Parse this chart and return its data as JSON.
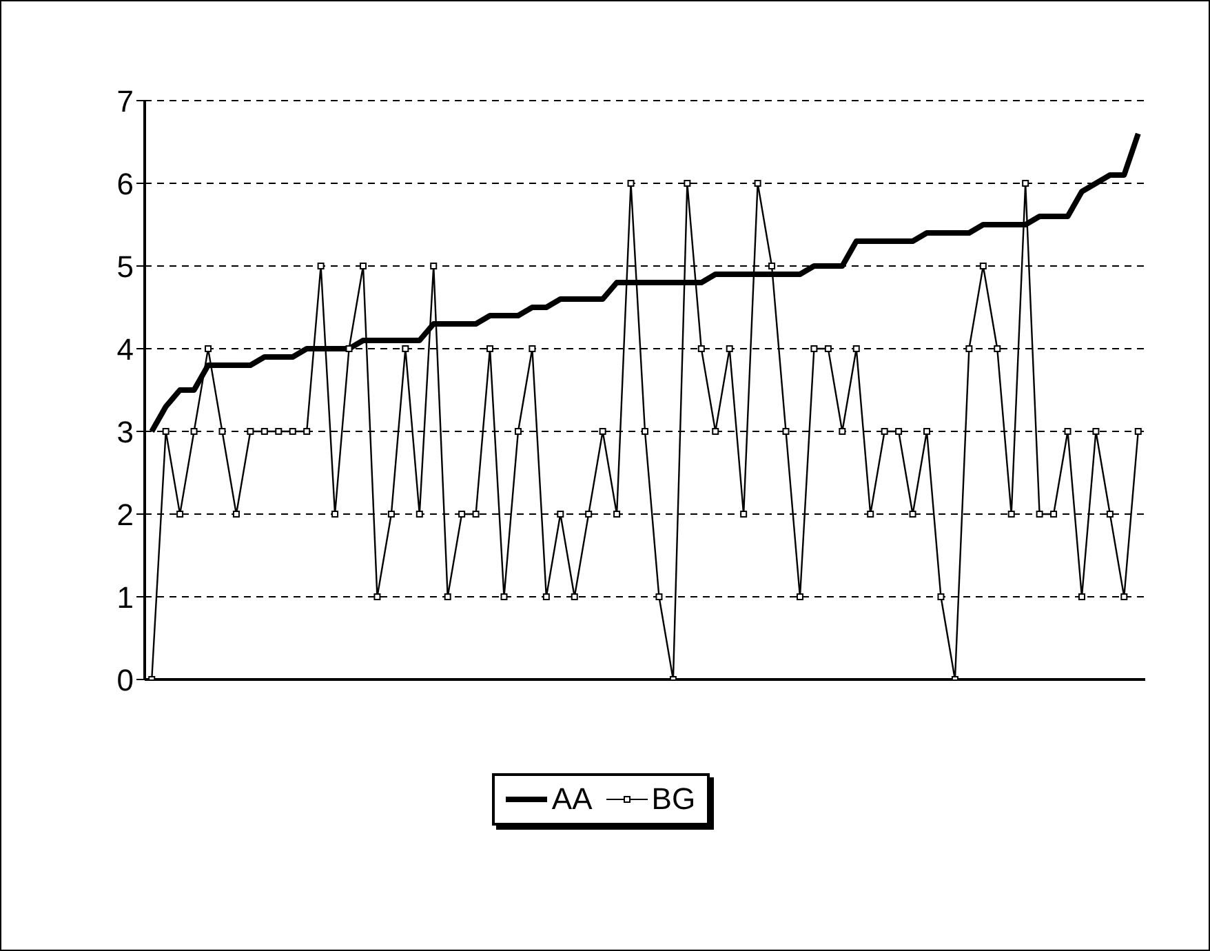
{
  "chart_data": {
    "type": "line",
    "categories": [
      null,
      null,
      null,
      null,
      null,
      null,
      null,
      null,
      null,
      null,
      null,
      null,
      null,
      null,
      null,
      null,
      null,
      null,
      null,
      null,
      null,
      null,
      null,
      null,
      null,
      null,
      null,
      null,
      null,
      null,
      null,
      null,
      null,
      null,
      null,
      null,
      null,
      null,
      null,
      null,
      null,
      null,
      null,
      null,
      null,
      null,
      null,
      null,
      null,
      null,
      null,
      null,
      null,
      null,
      null,
      null,
      null,
      null,
      null,
      null,
      null,
      null,
      null,
      null,
      null,
      null,
      null,
      null,
      null,
      null,
      null
    ],
    "series": [
      {
        "name": "AA",
        "color": "#000000",
        "marker": "none",
        "values": [
          3.0,
          3.3,
          3.5,
          3.5,
          3.8,
          3.8,
          3.8,
          3.8,
          3.9,
          3.9,
          3.9,
          4.0,
          4.0,
          4.0,
          4.0,
          4.1,
          4.1,
          4.1,
          4.1,
          4.1,
          4.3,
          4.3,
          4.3,
          4.3,
          4.4,
          4.4,
          4.4,
          4.5,
          4.5,
          4.6,
          4.6,
          4.6,
          4.6,
          4.8,
          4.8,
          4.8,
          4.8,
          4.8,
          4.8,
          4.8,
          4.9,
          4.9,
          4.9,
          4.9,
          4.9,
          4.9,
          4.9,
          5.0,
          5.0,
          5.0,
          5.3,
          5.3,
          5.3,
          5.3,
          5.3,
          5.4,
          5.4,
          5.4,
          5.4,
          5.5,
          5.5,
          5.5,
          5.5,
          5.6,
          5.6,
          5.6,
          5.9,
          6.0,
          6.1,
          6.1,
          6.6
        ]
      },
      {
        "name": "BG",
        "color": "#000000",
        "marker": "square",
        "values": [
          0,
          3,
          2,
          3,
          4,
          3,
          2,
          3,
          3,
          3,
          3,
          3,
          5,
          2,
          4,
          5,
          1,
          2,
          4,
          2,
          5,
          1,
          2,
          2,
          4,
          1,
          3,
          4,
          1,
          2,
          1,
          2,
          3,
          2,
          6,
          3,
          1,
          0,
          6,
          4,
          3,
          4,
          2,
          6,
          5,
          3,
          1,
          4,
          4,
          3,
          4,
          2,
          3,
          3,
          2,
          3,
          1,
          0,
          4,
          5,
          4,
          2,
          6,
          2,
          2,
          3,
          1,
          3,
          2,
          1,
          3
        ]
      }
    ],
    "ylim": [
      0,
      7
    ],
    "yticks": [
      0,
      1,
      2,
      3,
      4,
      5,
      6,
      7
    ],
    "grid": "y",
    "legend": "bottom",
    "tick_labels": "y"
  }
}
